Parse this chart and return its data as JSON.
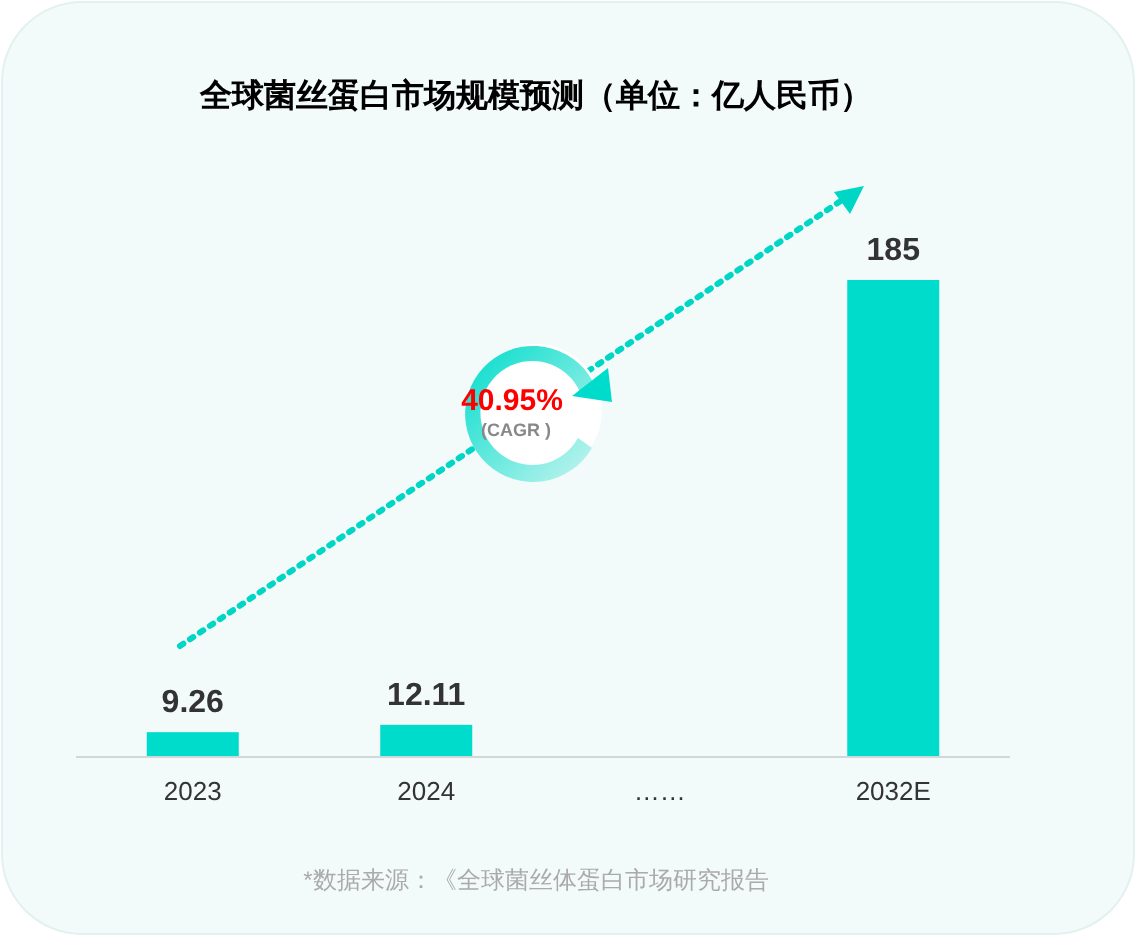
{
  "chart_data": {
    "type": "bar",
    "title": "全球菌丝蛋白市场规模预测（单位：亿人民币）",
    "categories": [
      "2023",
      "2024",
      "……",
      "2032E"
    ],
    "values": [
      9.26,
      12.11,
      null,
      185
    ],
    "color": "#00dccb",
    "data_labels": true,
    "annotations": [
      "40.95%",
      "(CAGR )",
      "*数据来源：《全球菌丝体蛋白市场研究报告"
    ]
  }
}
